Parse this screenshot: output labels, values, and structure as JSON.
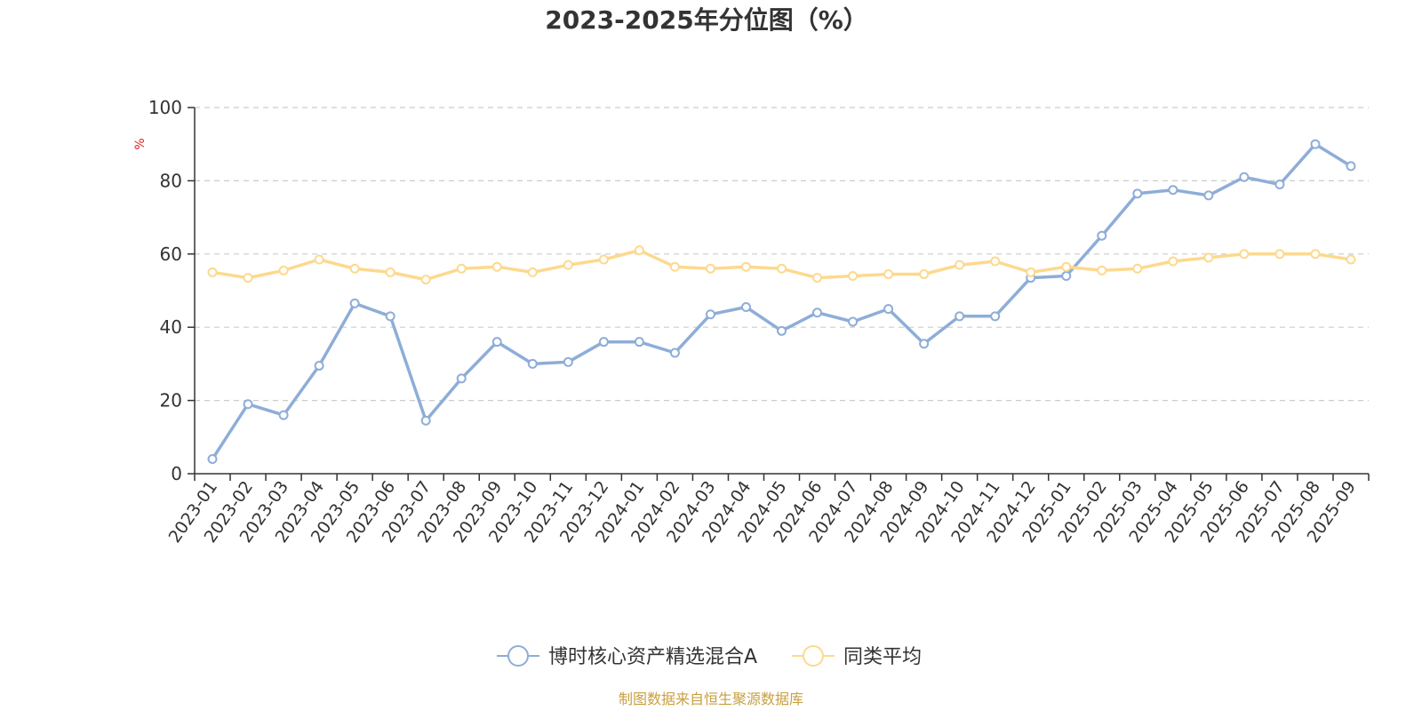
{
  "chart_data": {
    "type": "line",
    "title": "2023-2025年分位图（%）",
    "ylabel": "%",
    "ylim": [
      0,
      100
    ],
    "yticks": [
      0,
      20,
      40,
      60,
      80,
      100
    ],
    "grid": true,
    "legend_position": "bottom-center",
    "x": [
      "2023-01",
      "2023-02",
      "2023-03",
      "2023-04",
      "2023-05",
      "2023-06",
      "2023-07",
      "2023-08",
      "2023-09",
      "2023-10",
      "2023-11",
      "2023-12",
      "2024-01",
      "2024-02",
      "2024-03",
      "2024-04",
      "2024-05",
      "2024-06",
      "2024-07",
      "2024-08",
      "2024-09",
      "2024-10",
      "2024-11",
      "2024-12",
      "2025-01",
      "2025-02",
      "2025-03",
      "2025-04",
      "2025-05",
      "2025-06",
      "2025-07",
      "2025-08",
      "2025-09"
    ],
    "series": [
      {
        "name": "博时核心资产精选混合A",
        "color": "#8eadd8",
        "values": [
          4,
          19,
          16,
          29.5,
          46.5,
          43,
          14.5,
          26,
          36,
          30,
          30.5,
          36,
          36,
          33,
          43.5,
          45.5,
          39,
          44,
          41.5,
          45,
          35.5,
          43,
          43,
          53.5,
          54,
          65,
          76.5,
          77.5,
          76,
          81,
          79,
          90,
          84
        ]
      },
      {
        "name": "同类平均",
        "color": "#fdd98e",
        "values": [
          55,
          53.5,
          55.5,
          58.5,
          56,
          55,
          53,
          56,
          56.5,
          55,
          57,
          58.5,
          61,
          56.5,
          56,
          56.5,
          56,
          53.5,
          54,
          54.5,
          54.5,
          57,
          58,
          55,
          56.5,
          55.5,
          56,
          58,
          59,
          60,
          60,
          60,
          58.5
        ]
      }
    ]
  },
  "colors": {
    "ylabel": "#e02020",
    "source": "#c8a040",
    "grid": "#cccccc",
    "axis": "#333333"
  },
  "source_text": "制图数据来自恒生聚源数据库"
}
